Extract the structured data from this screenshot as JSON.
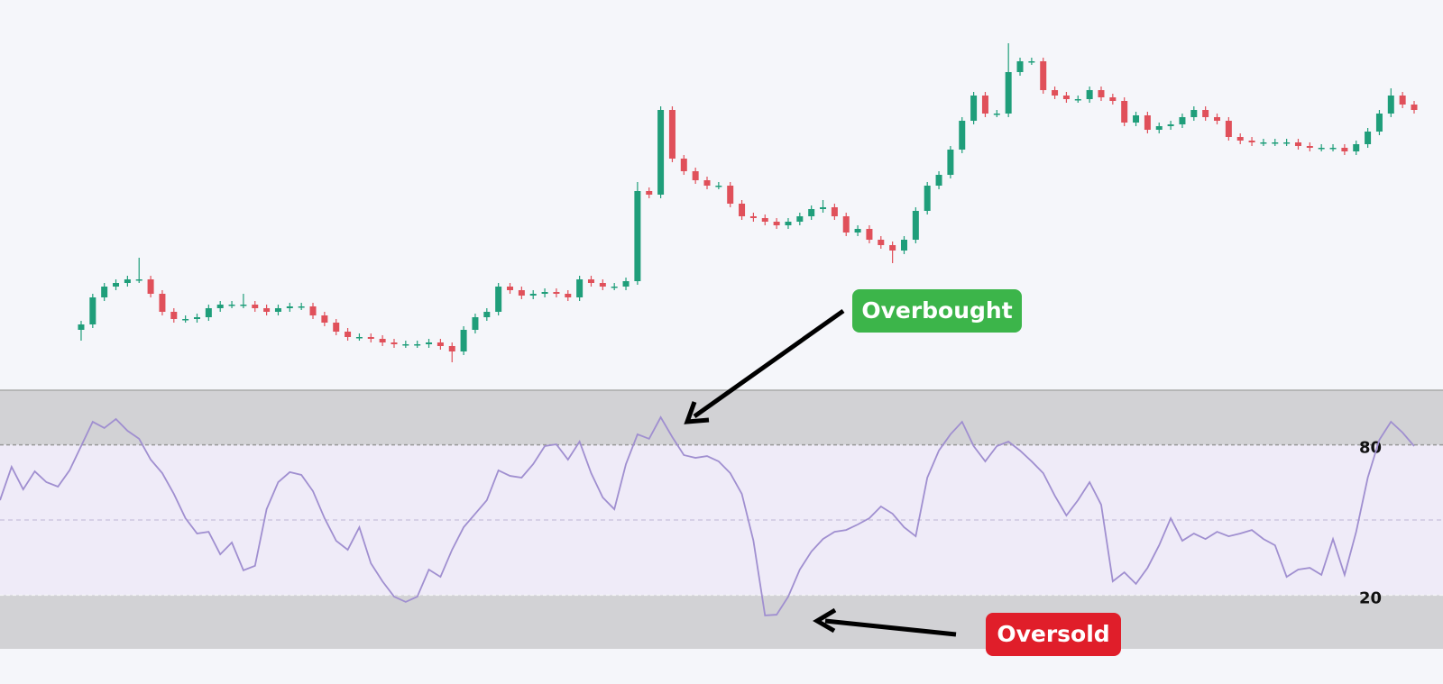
{
  "chart_data": [
    {
      "type": "candlestick",
      "up_color": "#1f9e7a",
      "down_color": "#e0505a",
      "xlim": [
        0,
        122
      ],
      "ylim": [
        0,
        100
      ],
      "x": [
        7,
        8,
        9,
        10,
        11,
        12,
        13,
        14,
        15,
        16,
        17,
        18,
        19,
        20,
        21,
        22,
        23,
        24,
        25,
        26,
        27,
        28,
        29,
        30,
        31,
        32,
        33,
        34,
        35,
        36,
        37,
        38,
        39,
        40,
        41,
        42,
        43,
        44,
        45,
        46,
        47,
        48,
        49,
        50,
        51,
        52,
        53,
        54,
        55,
        56,
        57,
        58,
        59,
        60,
        61,
        62,
        63,
        64,
        65,
        66,
        67,
        68,
        69,
        70,
        71,
        72,
        73,
        74,
        75,
        76,
        77,
        78,
        79,
        80,
        81,
        82,
        83,
        84,
        85,
        86,
        87,
        88,
        89,
        90,
        91,
        92,
        93,
        94,
        95,
        96,
        97,
        98,
        99,
        100,
        101,
        102,
        103,
        104,
        105,
        106,
        107,
        108,
        109,
        110,
        111,
        112,
        113,
        114,
        115,
        116,
        117,
        118,
        119,
        120,
        121,
        122
      ],
      "open": [
        16,
        17.5,
        25,
        28,
        29,
        30,
        30,
        26,
        21,
        19,
        19,
        19.5,
        22,
        23,
        23,
        23,
        22,
        21,
        22,
        22.5,
        22.5,
        20,
        18,
        15.5,
        14,
        14,
        13.5,
        12.5,
        12,
        12,
        12,
        12.5,
        11.5,
        10,
        16,
        19.5,
        21,
        28,
        27,
        25.5,
        26,
        26.5,
        26,
        25,
        30,
        29,
        28,
        28,
        29.5,
        54.5,
        53.5,
        77,
        63.5,
        60,
        57.5,
        56,
        56,
        51,
        47.5,
        47,
        46,
        45,
        46,
        47.5,
        49.5,
        50,
        47.5,
        43,
        44,
        41,
        39.5,
        38,
        41,
        49,
        56,
        59,
        66,
        74,
        81,
        76,
        76,
        87.5,
        90.5,
        90.5,
        82.5,
        81,
        80,
        80,
        82.5,
        80.5,
        79.5,
        73.5,
        75.5,
        71.5,
        72.5,
        73,
        75,
        77,
        75,
        74,
        69.5,
        68.5,
        68,
        68,
        68,
        68,
        67,
        66.5,
        66.5,
        66.5,
        65.5,
        67.5,
        71,
        76,
        81,
        78.5
      ],
      "high": [
        18.5,
        26,
        29,
        30,
        31,
        36,
        31,
        27,
        22,
        20,
        20.5,
        23,
        24,
        24,
        26,
        24,
        23,
        23,
        23.5,
        23.5,
        23.5,
        21,
        19,
        16.5,
        15,
        15,
        14.5,
        13.5,
        13,
        13,
        13.5,
        13.5,
        12.5,
        17,
        20.5,
        22,
        29,
        29,
        28,
        27,
        27.5,
        27.5,
        27,
        31,
        31,
        30,
        29,
        30.5,
        57,
        55.5,
        78,
        78,
        64.5,
        61,
        58.5,
        57,
        57,
        52,
        48.5,
        48,
        47,
        47,
        48.5,
        50.5,
        52,
        51,
        48.5,
        45,
        45,
        42,
        40.5,
        42,
        50,
        57,
        60,
        67,
        75,
        82,
        82,
        77,
        95.5,
        91.5,
        91.5,
        91.5,
        83.5,
        82,
        81,
        83.5,
        83.5,
        81.5,
        80.5,
        76.5,
        76.5,
        73.5,
        74,
        76,
        78,
        78,
        76,
        75,
        70.5,
        69.5,
        69,
        69,
        69,
        69,
        68,
        67.5,
        67.5,
        67.5,
        68.5,
        72,
        77,
        83,
        82,
        79.5
      ],
      "low": [
        13,
        16.5,
        24,
        27,
        28,
        29,
        25,
        20,
        18,
        18,
        18,
        18.5,
        21,
        22,
        22,
        21,
        20,
        20,
        21,
        21.5,
        19,
        17,
        14.5,
        13,
        13,
        12.5,
        11.5,
        11,
        11,
        11,
        11,
        10.5,
        7,
        9,
        15,
        18.5,
        20,
        26,
        24.5,
        24.5,
        25,
        25,
        24,
        24,
        28,
        27,
        27,
        27,
        28.5,
        52.5,
        52.5,
        62.5,
        59,
        56.5,
        55,
        55,
        50,
        46.5,
        46,
        45,
        44,
        44,
        45,
        46.5,
        48.5,
        46.5,
        42,
        42,
        40,
        38.5,
        34.5,
        37,
        40,
        48,
        55,
        58,
        65,
        73,
        75,
        75,
        75,
        86.5,
        89.5,
        81.5,
        80,
        79,
        79,
        79,
        79.5,
        78.5,
        72.5,
        72.5,
        70.5,
        70.5,
        71.5,
        72,
        74,
        74,
        73,
        68.5,
        67.5,
        67,
        67,
        67,
        67,
        66,
        65.5,
        65.5,
        65.5,
        64.5,
        64.5,
        66.5,
        70,
        75,
        77.5,
        76
      ],
      "close": [
        17.5,
        25,
        28,
        29,
        30,
        30,
        26,
        21,
        19,
        19,
        19.5,
        22,
        23,
        23,
        23,
        22,
        21,
        22,
        22.5,
        22.5,
        20,
        18,
        15.5,
        14,
        14,
        13.5,
        12.5,
        12,
        12,
        12,
        12.5,
        11.5,
        10,
        16,
        19.5,
        21,
        28,
        27,
        25.5,
        26,
        26.5,
        26,
        25,
        30,
        29,
        28,
        28,
        29.5,
        54.5,
        53.5,
        77,
        63.5,
        60,
        57.5,
        56,
        56,
        51,
        47.5,
        47,
        46,
        45,
        46,
        47.5,
        49.5,
        50,
        47.5,
        43,
        44,
        41,
        39.5,
        38,
        41,
        49,
        56,
        59,
        66,
        74,
        81,
        76,
        76,
        87.5,
        90.5,
        90.5,
        82.5,
        81,
        80,
        80,
        82.5,
        80.5,
        79.5,
        73.5,
        75.5,
        71.5,
        72.5,
        73,
        75,
        77,
        75,
        74,
        69.5,
        68.5,
        68,
        68,
        68,
        68,
        67,
        66.5,
        66.5,
        66.5,
        65.5,
        67.5,
        71,
        76,
        81,
        78.5,
        77
      ]
    },
    {
      "type": "line",
      "color": "#a08fd0",
      "zone_color": "#d2d2d5",
      "band_color": "#efebf8",
      "xlim": [
        0,
        122
      ],
      "ylim": [
        0,
        100
      ],
      "yticks": [
        20,
        80
      ],
      "midline": 50,
      "values": [
        57.9,
        71.2,
        62.2,
        69.4,
        65.1,
        63.3,
        69.8,
        79.5,
        89.2,
        86.7,
        90.3,
        85.6,
        82.4,
        74.1,
        68.7,
        60.4,
        50.7,
        44.6,
        45.3,
        36.3,
        41,
        29.9,
        31.7,
        54.3,
        65.1,
        69.1,
        68,
        61.5,
        50.7,
        41.7,
        38.1,
        47.1,
        32.7,
        25.5,
        19.4,
        17.3,
        19.4,
        30.2,
        27.3,
        38.1,
        47.1,
        52.5,
        57.9,
        69.8,
        67.6,
        66.9,
        72.3,
        79.5,
        80.2,
        74.1,
        81.3,
        68.7,
        59,
        54.3,
        72.3,
        84.2,
        82.4,
        91,
        83.1,
        75.9,
        74.8,
        75.5,
        73.4,
        68.7,
        60.4,
        41.7,
        11.9,
        12.2,
        19.4,
        30.2,
        37.4,
        42.4,
        45.3,
        46,
        48.2,
        50.7,
        55.4,
        52.5,
        47.1,
        43.5,
        66.9,
        77.7,
        84.2,
        89.2,
        79.5,
        73.4,
        79.5,
        81.3,
        77.7,
        73.4,
        68.7,
        59.7,
        51.8,
        57.9,
        65.1,
        56.1,
        25.5,
        29.1,
        24.5,
        30.9,
        39.9,
        50.7,
        41.7,
        44.6,
        42.4,
        45.3,
        43.5,
        44.6,
        46,
        42.4,
        39.9,
        27.3,
        30.2,
        30.9,
        28.1,
        42.4,
        28.1,
        45.3,
        66.9,
        82,
        89.2,
        84.9,
        79.5
      ],
      "annotations": [
        {
          "text": "Overbought",
          "color": "#3cb54a"
        },
        {
          "text": "Oversold",
          "color": "#e01e2a"
        }
      ]
    }
  ]
}
